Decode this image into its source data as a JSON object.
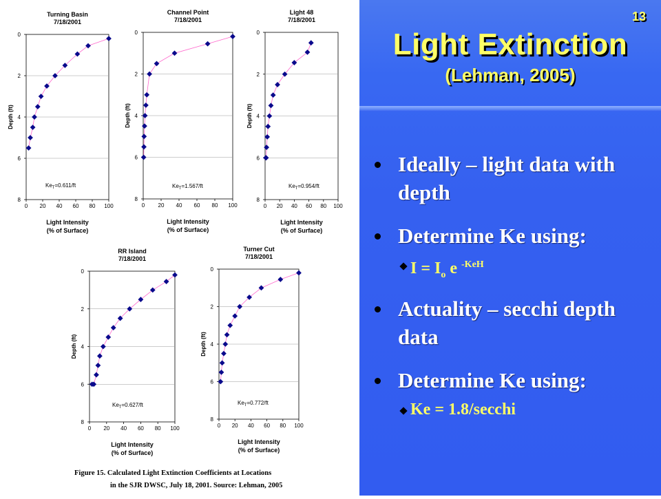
{
  "slide": {
    "number": "13",
    "title": "Light Extinction",
    "subtitle": "(Lehman, 2005)",
    "bullets": [
      {
        "text": "Ideally – light data with depth"
      },
      {
        "text": "Determine Ke using:",
        "sub": {
          "pre": "I = I",
          "subscript": "o",
          "mid": " e ",
          "superscript": "-KeH"
        }
      },
      {
        "text": "Actuality – secchi depth data"
      },
      {
        "text": "Determine Ke using:",
        "sub_text": "Ke = 1.8/secchi"
      }
    ]
  },
  "figure": {
    "caption_line1": "Figure 15.  Calculated Light Extinction Coefficients at Locations",
    "caption_line2": "in the SJR DWSC, July 18, 2001.  Source: Lehman, 2005"
  },
  "colors": {
    "marker": "#0a0a8c",
    "fit_curve": "#ff66cc",
    "title_text": "#ffff66",
    "background": "#3560f0"
  },
  "chart_data": [
    {
      "type": "scatter",
      "title": "Turning Basin",
      "subtitle": "7/18/2001",
      "xlabel": "Light Intensity\n(% of Surface)",
      "ylabel": "Depth (ft)",
      "xlim": [
        0,
        100
      ],
      "ylim": [
        0,
        8
      ],
      "y_inverted": true,
      "xticks": [
        0,
        20,
        40,
        60,
        80,
        100
      ],
      "yticks": [
        0,
        2,
        4,
        6,
        8
      ],
      "annotation": "Ke",
      "annotation_sub": "T",
      "annotation_rest": "=0.611/ft",
      "x": [
        100,
        75,
        62,
        47,
        35,
        25,
        18,
        14,
        10,
        8,
        5,
        3
      ],
      "y": [
        0.2,
        0.55,
        0.95,
        1.5,
        2.0,
        2.5,
        3.0,
        3.5,
        4.0,
        4.5,
        5.0,
        5.5
      ]
    },
    {
      "type": "scatter",
      "title": "Channel Point",
      "subtitle": "7/18/2001",
      "xlabel": "Light Intensity\n(% of Surface)",
      "ylabel": "Depth (ft)",
      "xlim": [
        0,
        100
      ],
      "ylim": [
        0,
        8
      ],
      "y_inverted": true,
      "xticks": [
        0,
        20,
        40,
        60,
        80,
        100
      ],
      "yticks": [
        0,
        2,
        4,
        6,
        8
      ],
      "annotation": "Ke",
      "annotation_sub": "T",
      "annotation_rest": "=1.567/ft",
      "x": [
        100,
        72,
        35,
        15,
        7,
        4,
        3,
        2,
        1.5,
        1,
        0.8,
        0.5
      ],
      "y": [
        0.2,
        0.55,
        1.0,
        1.5,
        2.0,
        3.0,
        3.5,
        4.0,
        4.5,
        5.0,
        5.5,
        6.0
      ]
    },
    {
      "type": "scatter",
      "title": "Light 48",
      "subtitle": "7/18/2001",
      "xlabel": "Light Intensity\n(% of Surface)",
      "ylabel": "Depth (ft)",
      "xlim": [
        0,
        100
      ],
      "ylim": [
        0,
        8
      ],
      "y_inverted": true,
      "xticks": [
        0,
        20,
        40,
        60,
        80,
        100
      ],
      "yticks": [
        0,
        2,
        4,
        6,
        8
      ],
      "annotation": "Ke",
      "annotation_sub": "T",
      "annotation_rest": "=0.954/ft",
      "x": [
        63,
        58,
        40,
        27,
        17,
        11,
        8,
        6,
        4,
        3,
        2,
        1.5,
        1
      ],
      "y": [
        0.5,
        0.95,
        1.45,
        2.0,
        2.5,
        3.0,
        3.5,
        4.0,
        4.5,
        5.0,
        5.5,
        6.0,
        6.0
      ]
    },
    {
      "type": "scatter",
      "title": "RR Island",
      "subtitle": "7/18/2001",
      "xlabel": "Light Intensity\n(% of Surface)",
      "ylabel": "Depth (ft)",
      "xlim": [
        0,
        100
      ],
      "ylim": [
        0,
        8
      ],
      "y_inverted": true,
      "xticks": [
        0,
        20,
        40,
        60,
        80,
        100
      ],
      "yticks": [
        0,
        2,
        4,
        6,
        8
      ],
      "annotation": "Ke",
      "annotation_sub": "T",
      "annotation_rest": "=0.627/ft",
      "x": [
        100,
        90,
        74,
        60,
        47,
        36,
        28,
        22,
        16,
        12,
        10,
        8,
        5,
        3
      ],
      "y": [
        0.2,
        0.55,
        1.0,
        1.5,
        2.0,
        2.5,
        3.0,
        3.5,
        4.0,
        4.5,
        5.0,
        5.5,
        6.0,
        6.0
      ]
    },
    {
      "type": "scatter",
      "title": "Turner Cut",
      "subtitle": "7/18/2001",
      "xlabel": "Light Intensity\n(% of Surface)",
      "ylabel": "Depth (ft)",
      "xlim": [
        0,
        100
      ],
      "ylim": [
        0,
        8
      ],
      "y_inverted": true,
      "xticks": [
        0,
        20,
        40,
        60,
        80,
        100
      ],
      "yticks": [
        0,
        2,
        4,
        6,
        8
      ],
      "annotation": "Ke",
      "annotation_sub": "T",
      "annotation_rest": "=0.772/ft",
      "x": [
        100,
        77,
        53,
        38,
        26,
        20,
        14,
        10,
        8,
        6,
        4,
        3,
        2
      ],
      "y": [
        0.2,
        0.55,
        1.0,
        1.5,
        2.0,
        2.5,
        3.0,
        3.5,
        4.0,
        4.5,
        5.0,
        5.5,
        6.0
      ]
    }
  ]
}
